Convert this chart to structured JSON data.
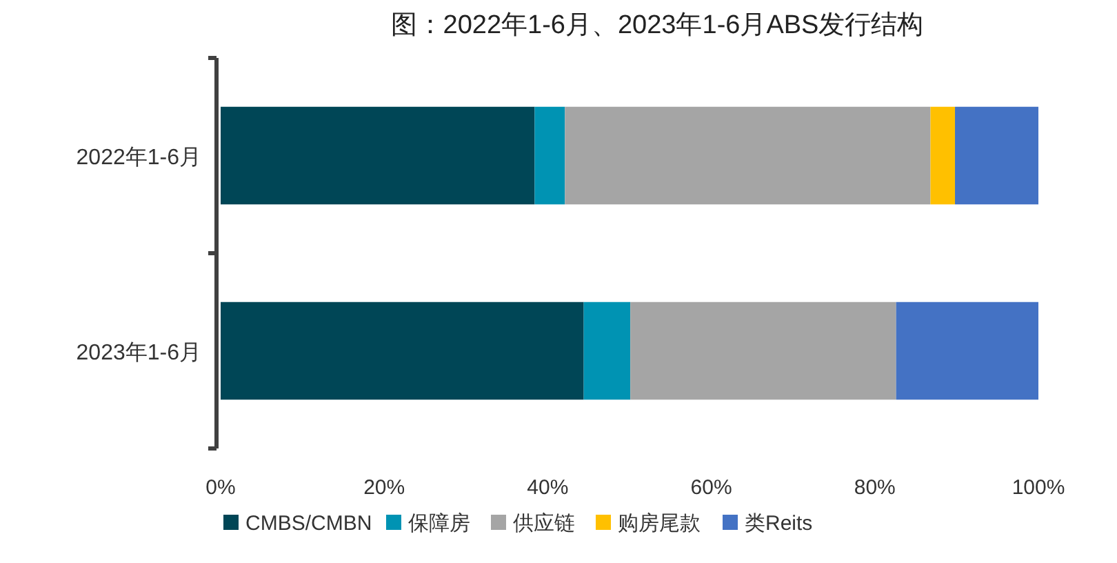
{
  "chart_data": {
    "type": "bar",
    "orientation": "horizontal",
    "stacked": true,
    "title": "图：2022年1-6月、2023年1-6月ABS发行结构",
    "categories": [
      "2022年1-6月",
      "2023年1-6月"
    ],
    "series": [
      {
        "name": "CMBS/CMBN",
        "color": "#004656",
        "values": [
          38.4,
          44.4
        ]
      },
      {
        "name": "保障房",
        "color": "#0093b3",
        "values": [
          3.7,
          5.7
        ]
      },
      {
        "name": "供应链",
        "color": "#a5a5a5",
        "values": [
          44.7,
          32.5
        ]
      },
      {
        "name": "购房尾款",
        "color": "#ffc000",
        "values": [
          3.0,
          0
        ]
      },
      {
        "name": "类Reits",
        "color": "#4472c4",
        "values": [
          10.2,
          17.4
        ]
      }
    ],
    "xlim": [
      0,
      100
    ],
    "xticks": [
      {
        "value": 0,
        "label": "0%"
      },
      {
        "value": 20,
        "label": "20%"
      },
      {
        "value": 40,
        "label": "40%"
      },
      {
        "value": 60,
        "label": "60%"
      },
      {
        "value": 80,
        "label": "80%"
      },
      {
        "value": 100,
        "label": "100%"
      }
    ],
    "grid": false,
    "legend": "bottom"
  }
}
